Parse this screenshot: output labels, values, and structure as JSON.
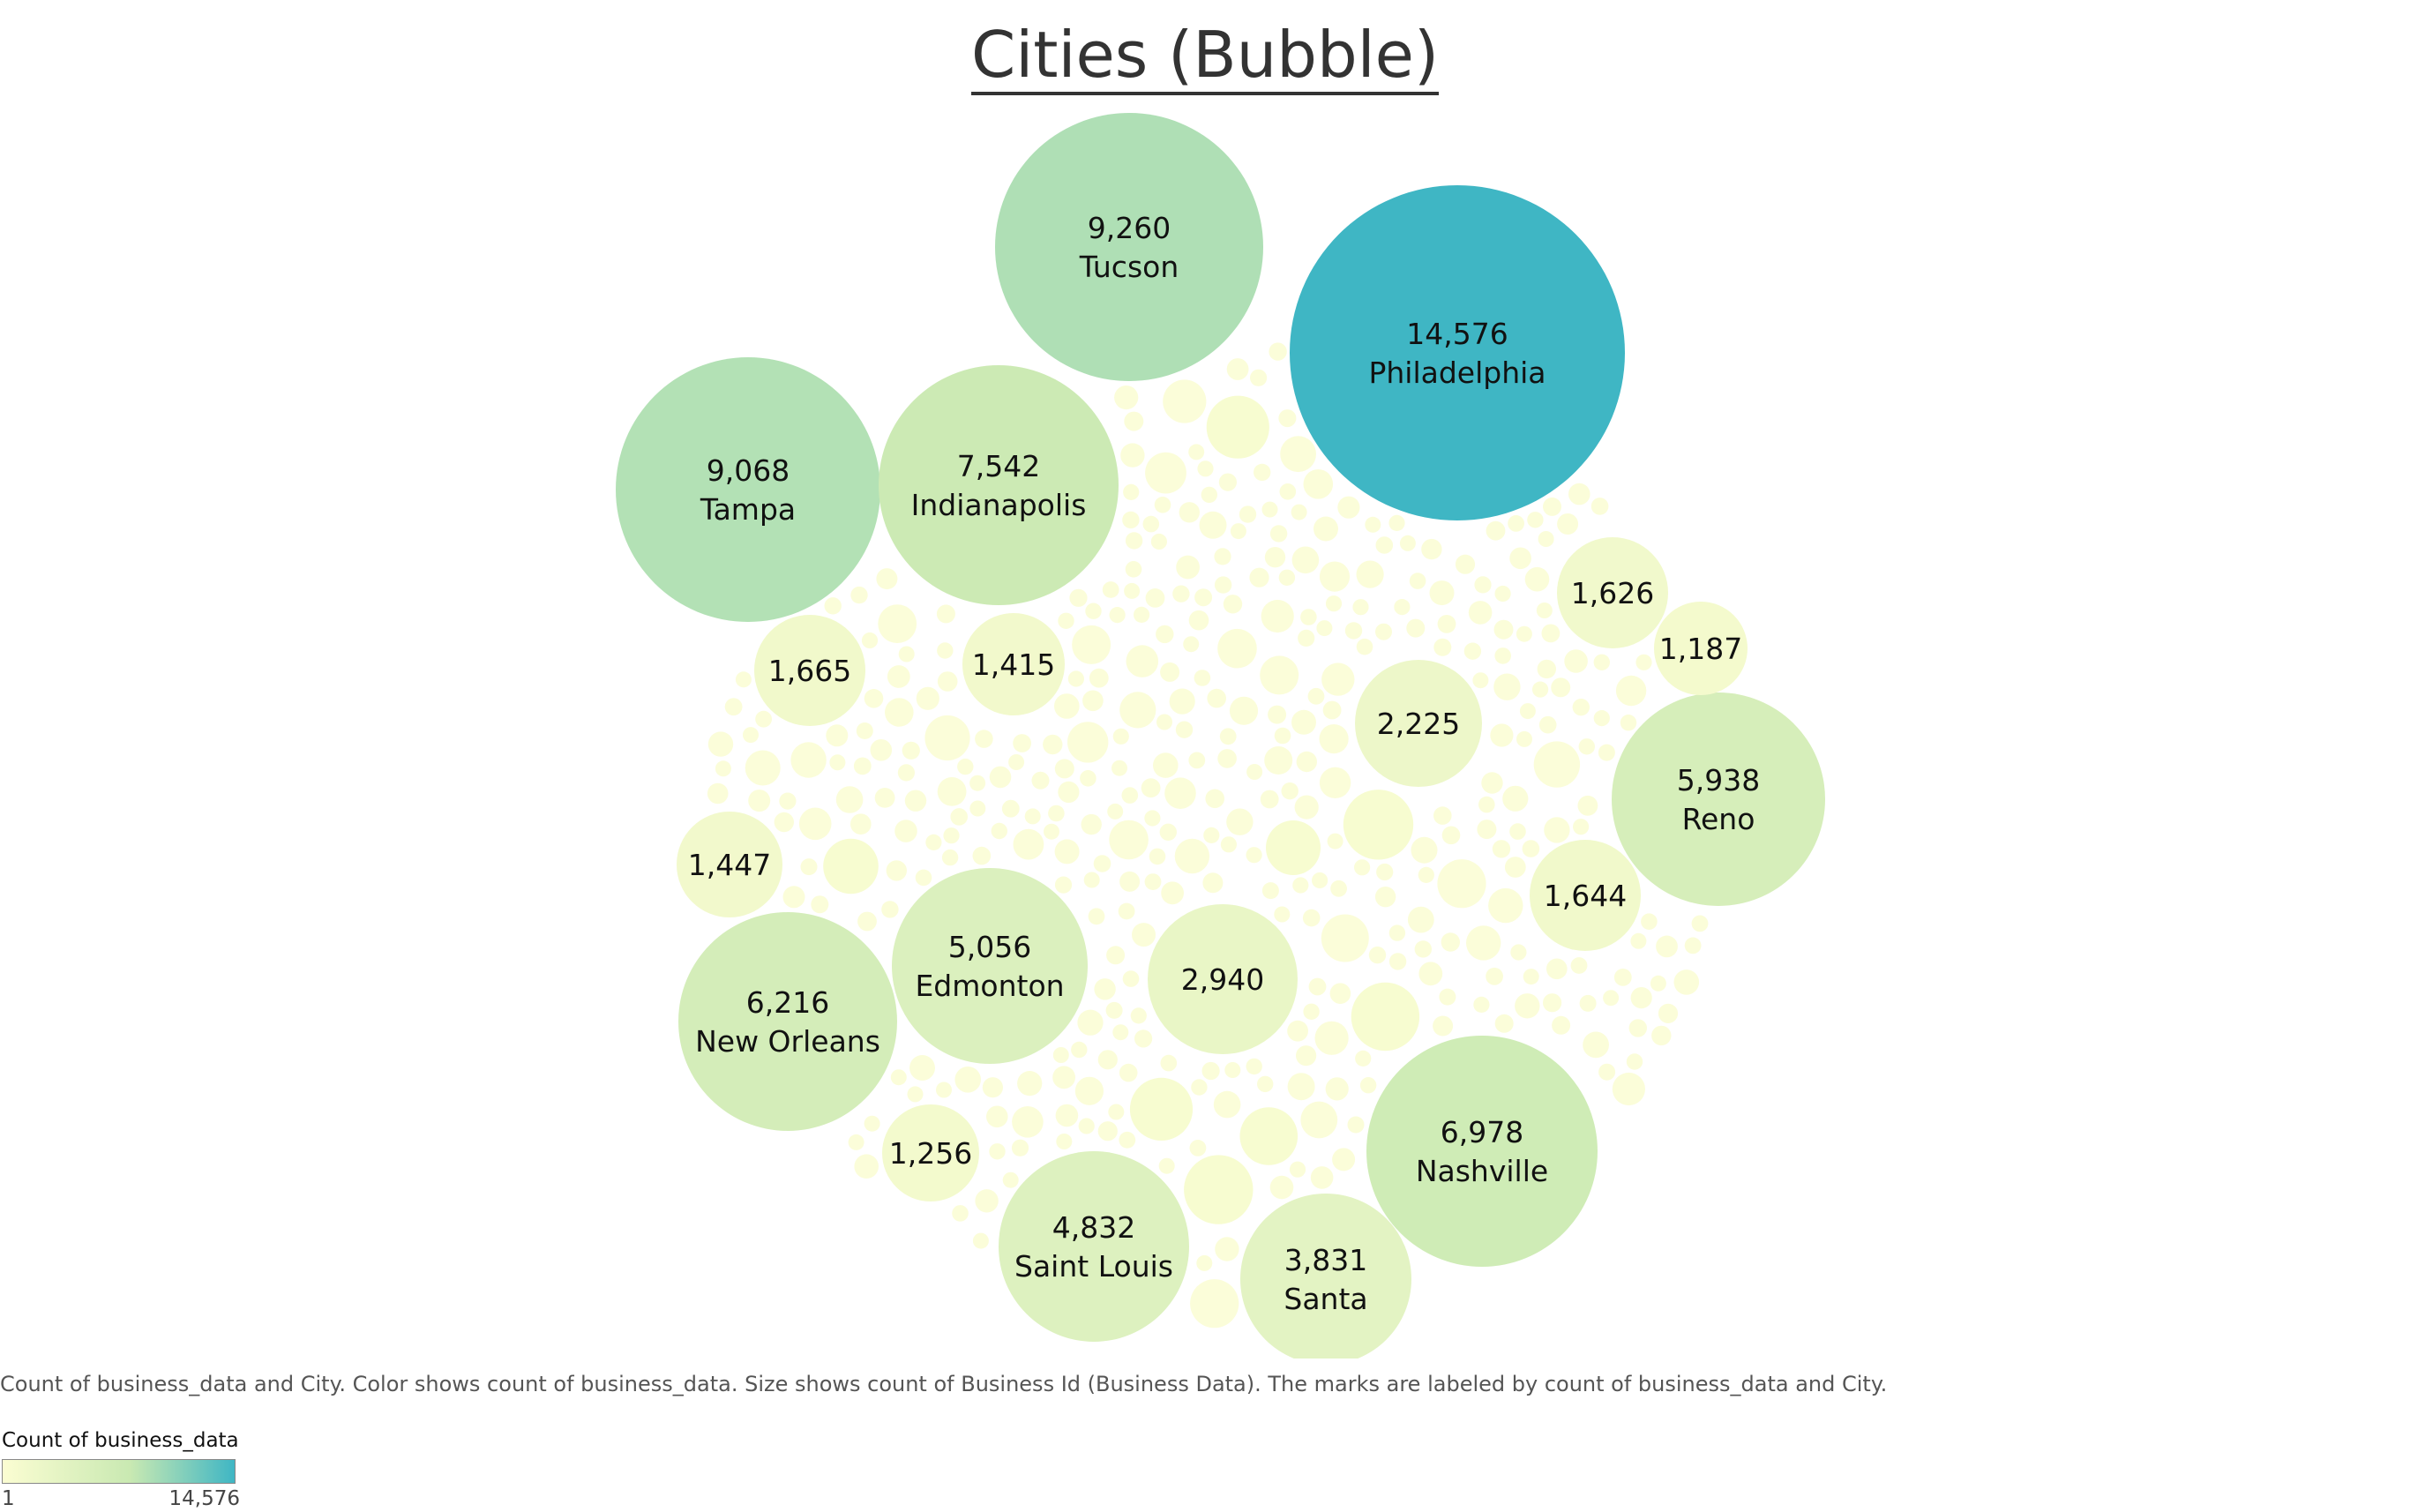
{
  "title": "Cities (Bubble)",
  "caption": "Count of business_data and City.  Color shows count of business_data.  Size shows count of Business Id (Business Data).  The marks are labeled by count of business_data and City.",
  "legend": {
    "title": "Count of business_data",
    "min_label": "1",
    "max_label": "14,576",
    "color_low": "#fbfdd2",
    "color_mid": "#c9e9b2",
    "color_high": "#3fb6c4"
  },
  "chart_data": {
    "type": "bubble",
    "measure_size": "count of Business Id (Business Data)",
    "measure_color": "count of business_data",
    "color_range": [
      1,
      14576
    ],
    "labeled_bubbles": [
      {
        "city": "Philadelphia",
        "count": 14576
      },
      {
        "city": "Tucson",
        "count": 9260
      },
      {
        "city": "Tampa",
        "count": 9068
      },
      {
        "city": "Indianapolis",
        "count": 7542
      },
      {
        "city": "Nashville",
        "count": 6978
      },
      {
        "city": "New Orleans",
        "count": 6216
      },
      {
        "city": "Reno",
        "count": 5938
      },
      {
        "city": "Edmonton",
        "count": 5056
      },
      {
        "city": "Saint Louis",
        "count": 4832
      },
      {
        "city": "Santa",
        "count": 3831
      },
      {
        "city": "",
        "count": 2940
      },
      {
        "city": "",
        "count": 2225
      },
      {
        "city": "",
        "count": 1665
      },
      {
        "city": "",
        "count": 1644
      },
      {
        "city": "",
        "count": 1626
      },
      {
        "city": "",
        "count": 1447
      },
      {
        "city": "",
        "count": 1415
      },
      {
        "city": "",
        "count": 1256
      },
      {
        "city": "",
        "count": 1187
      }
    ]
  }
}
